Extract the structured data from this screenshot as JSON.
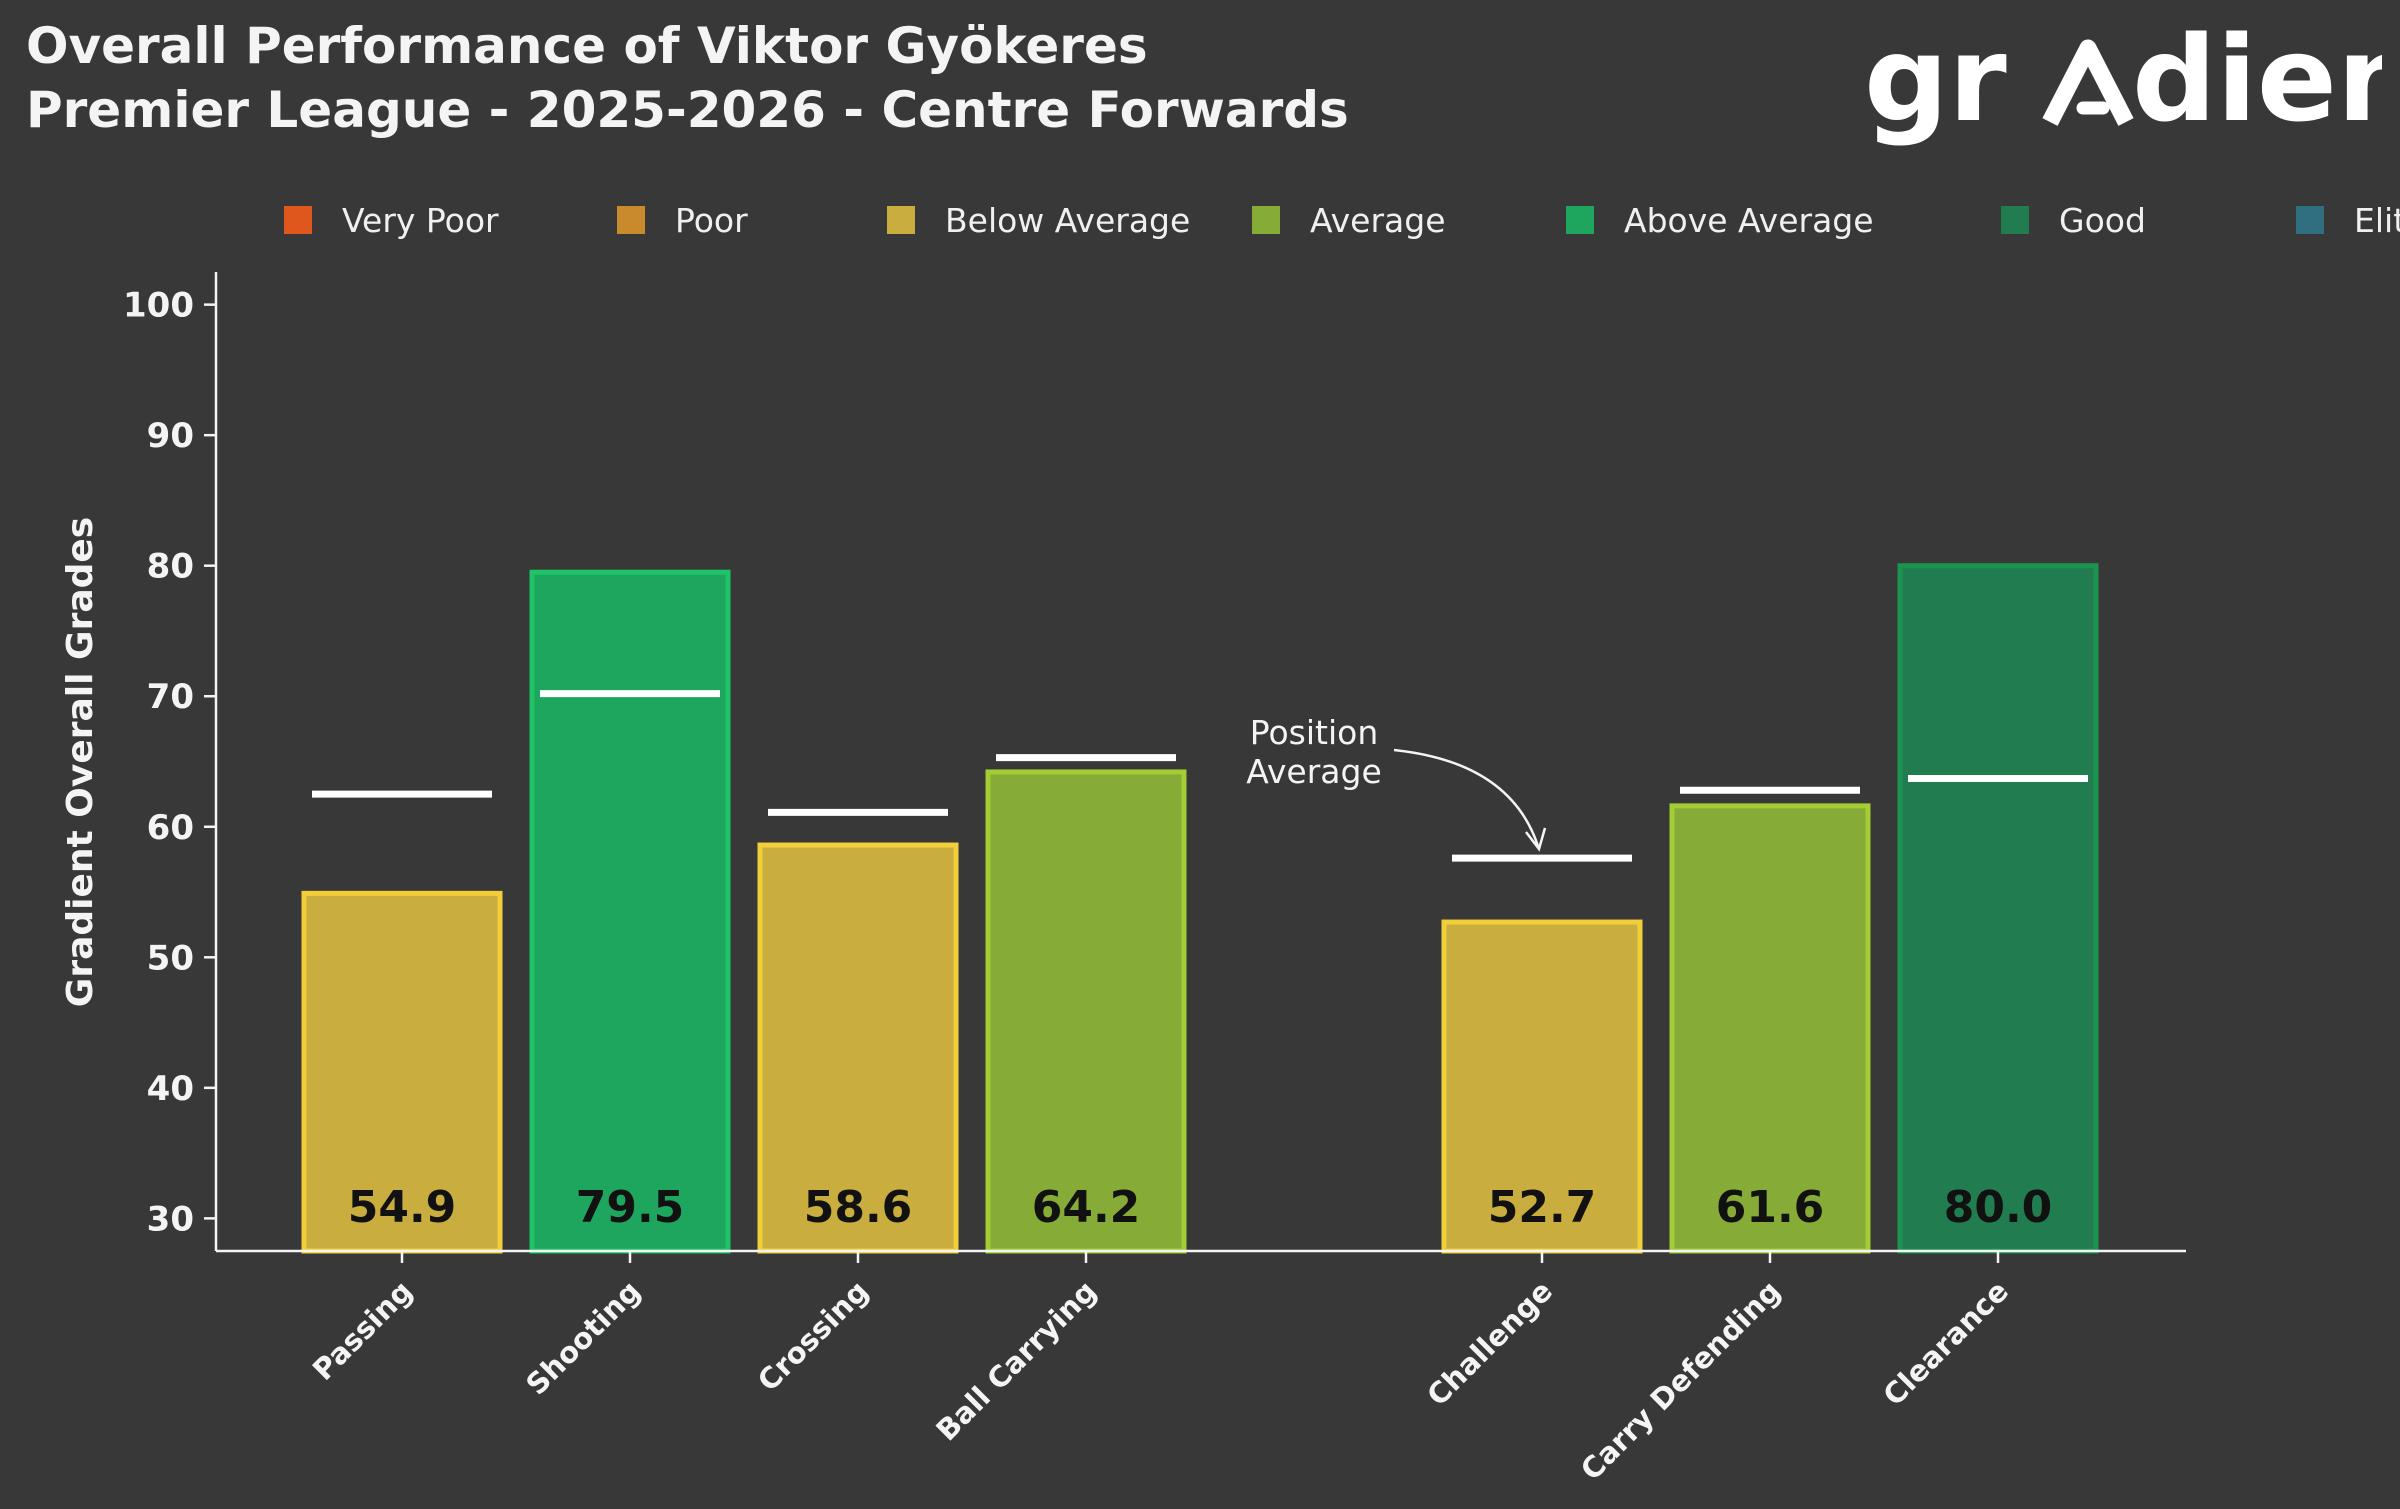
{
  "header": {
    "title_line1": "Overall Performance of Viktor Gyökeres",
    "title_line2": "Premier League - 2025-2026 - Centre Forwards",
    "logo_text": "grΛdient"
  },
  "chart_data": {
    "type": "bar",
    "ylabel": "Gradient Overall Grades",
    "xlabel": "",
    "ylim": [
      27.5,
      102.5
    ],
    "yticks": [
      30,
      40,
      50,
      60,
      70,
      80,
      90,
      100
    ],
    "grid": false,
    "legend_placement": "top",
    "legend": [
      {
        "label": "Very Poor",
        "color": "#e0571e"
      },
      {
        "label": "Poor",
        "color": "#c98a2e"
      },
      {
        "label": "Below Average",
        "color": "#c9ad3e"
      },
      {
        "label": "Average",
        "color": "#86ab36"
      },
      {
        "label": "Above Average",
        "color": "#1ea55e"
      },
      {
        "label": "Good",
        "color": "#217d4f"
      },
      {
        "label": "Elite",
        "color": "#2f6f80"
      }
    ],
    "groups": [
      {
        "bars": [
          {
            "category": "Passing",
            "value": 54.9,
            "value_label": "54.9",
            "position_average": 62.5,
            "rating": "Below Average",
            "fill": "#c9ad3e",
            "edge": "#f2cf3a"
          },
          {
            "category": "Shooting",
            "value": 79.5,
            "value_label": "79.5",
            "position_average": 70.2,
            "rating": "Above Average",
            "fill": "#1ea55e",
            "edge": "#1fc468"
          },
          {
            "category": "Crossing",
            "value": 58.6,
            "value_label": "58.6",
            "position_average": 61.1,
            "rating": "Below Average",
            "fill": "#c9ad3e",
            "edge": "#f2cf3a"
          },
          {
            "category": "Ball Carrying",
            "value": 64.2,
            "value_label": "64.2",
            "position_average": 65.3,
            "rating": "Average",
            "fill": "#86ab36",
            "edge": "#a3cc35"
          }
        ]
      },
      {
        "bars": [
          {
            "category": "Challenge",
            "value": 52.7,
            "value_label": "52.7",
            "position_average": 57.6,
            "rating": "Below Average",
            "fill": "#c9ad3e",
            "edge": "#f2cf3a"
          },
          {
            "category": "Carry Defending",
            "value": 61.6,
            "value_label": "61.6",
            "position_average": 62.8,
            "rating": "Average",
            "fill": "#86ab36",
            "edge": "#a3cc35"
          },
          {
            "category": "Clearance",
            "value": 80.0,
            "value_label": "80.0",
            "position_average": 63.7,
            "rating": "Good",
            "fill": "#217d4f",
            "edge": "#1b9450"
          }
        ]
      }
    ],
    "annotation": {
      "line1": "Position",
      "line2": "Average"
    }
  }
}
